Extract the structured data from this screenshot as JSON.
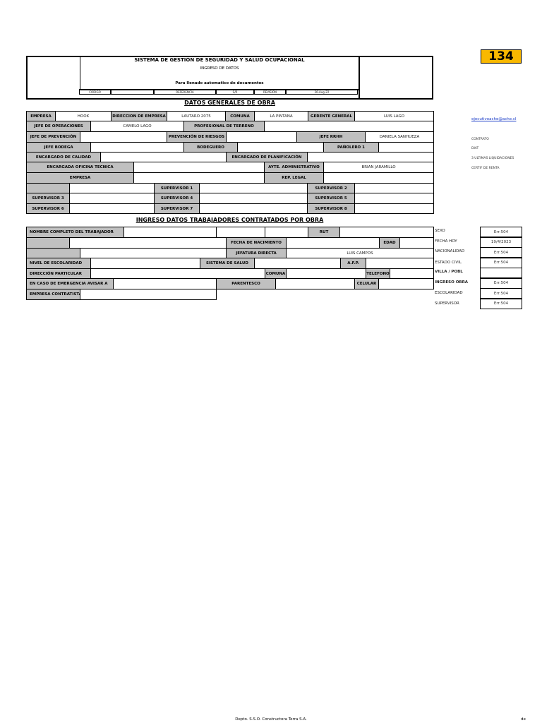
{
  "badge": {
    "number": "134",
    "color": "#F9B800"
  },
  "header": {
    "title": "SISTEMA DE GESTIÓN DE SEGURIDAD Y SALUD OCUPACIONAL",
    "subtitle": "INGRESO DE DATOS",
    "note": "Para llenado automatico de documentos",
    "meta": [
      "CODIGO",
      "",
      "REFERENCIA",
      "S/R",
      "REVISION",
      "26-Aug-22"
    ]
  },
  "general": {
    "title": "DATOS GENERALES DE OBRA",
    "rows": [
      [
        "EMPRESA",
        "HOOK",
        "DIRECCION DE EMPRESA",
        "LAUTARO 2075",
        "COMUNA",
        "LA PINTANA",
        "GERENTE GENERAL",
        "LUIS LAGO"
      ],
      [
        "JEFE DE OPERACIONES",
        "CAMELO LAGO",
        "PROFESIONAL DE TERRENO",
        ""
      ],
      [
        "JEFE DE PREVENCIÓN",
        "",
        "PREVENCIÓN DE RIESGOS",
        "",
        "JEFE RRHH",
        "DANIELA SANHUEZA"
      ],
      [
        "JEFE BODEGA",
        "",
        "BODEGUERO",
        "",
        "PAÑOLERO 1",
        ""
      ],
      [
        "ENCARGADO DE CALIDAD",
        "",
        "ENCARGADO DE PLANIFICACIÓN",
        ""
      ],
      [
        "ENCARGADA OFICINA TECNICA",
        "",
        "AYTE. ADMINISTRATIVO",
        "BRIAN JARAMILLO"
      ],
      [
        "EMPRESA",
        "",
        "REP. LEGAL",
        ""
      ],
      [
        "",
        "",
        "SUPERVISOR 1",
        "",
        "SUPERVISOR 2",
        ""
      ],
      [
        "SUPERVISOR 3",
        "",
        "SUPERVISOR 4",
        "",
        "SUPERVISOR 5",
        ""
      ],
      [
        "SUPERVISOR 6",
        "",
        "SUPERVISOR 7",
        "",
        "SUPERVISOR 8",
        ""
      ]
    ]
  },
  "workers": {
    "title": "INGRESO DATOS TRABAJADORES CONTRATADOS POR OBRA",
    "rows": [
      [
        "NOMBRE COMPLETO DEL TRABAJADOR",
        "",
        "",
        "",
        "RUT",
        ""
      ],
      [
        "",
        "",
        "FECHA DE NACIMIENTO",
        "",
        "EDAD",
        ""
      ],
      [
        "",
        "",
        "JEFATURA DIRECTA",
        "LUIS CAMPOS"
      ],
      [
        "NIVEL DE ESCOLARIDAD",
        "",
        "SISTEMA  DE SALUD",
        "",
        "A.F.P.",
        ""
      ],
      [
        "DIRECCIÓN PARTICULAR",
        "",
        "COMUNA",
        "",
        "TELEFONO",
        ""
      ],
      [
        "EN CASO DE EMERGENCIA AVISAR A",
        "",
        "PARENTESCO",
        "",
        "CELULAR",
        ""
      ],
      [
        "EMPRESA CONTRATISTA",
        ""
      ]
    ]
  },
  "side_fields": [
    {
      "label": "SEXO",
      "value": "Err:504"
    },
    {
      "label": "FECHA HOY",
      "value": "19/4/2023"
    },
    {
      "label": "NACIONALIDAD",
      "value": "Err:504"
    },
    {
      "label": "ESTADO CIVIL",
      "value": "Err:504"
    },
    {
      "label": "VILLA / POBL",
      "value": ""
    },
    {
      "label": "INGRESO OBRA",
      "value": "Err:504"
    },
    {
      "label": "ESCOLARIDAD",
      "value": "Err:504"
    },
    {
      "label": "SUPERVISOR",
      "value": "Err:504"
    }
  ],
  "notes": {
    "email": "ejecutivoache@ache.cl",
    "docs": [
      "CONTRATO",
      "DIAT",
      "3 ULTIMAS LIQUIDACIONES",
      "CERTIF DE RENTA"
    ]
  },
  "footer": {
    "company": "Depto. S.S.O.  Constructora Terra S.A.",
    "page": "de"
  }
}
